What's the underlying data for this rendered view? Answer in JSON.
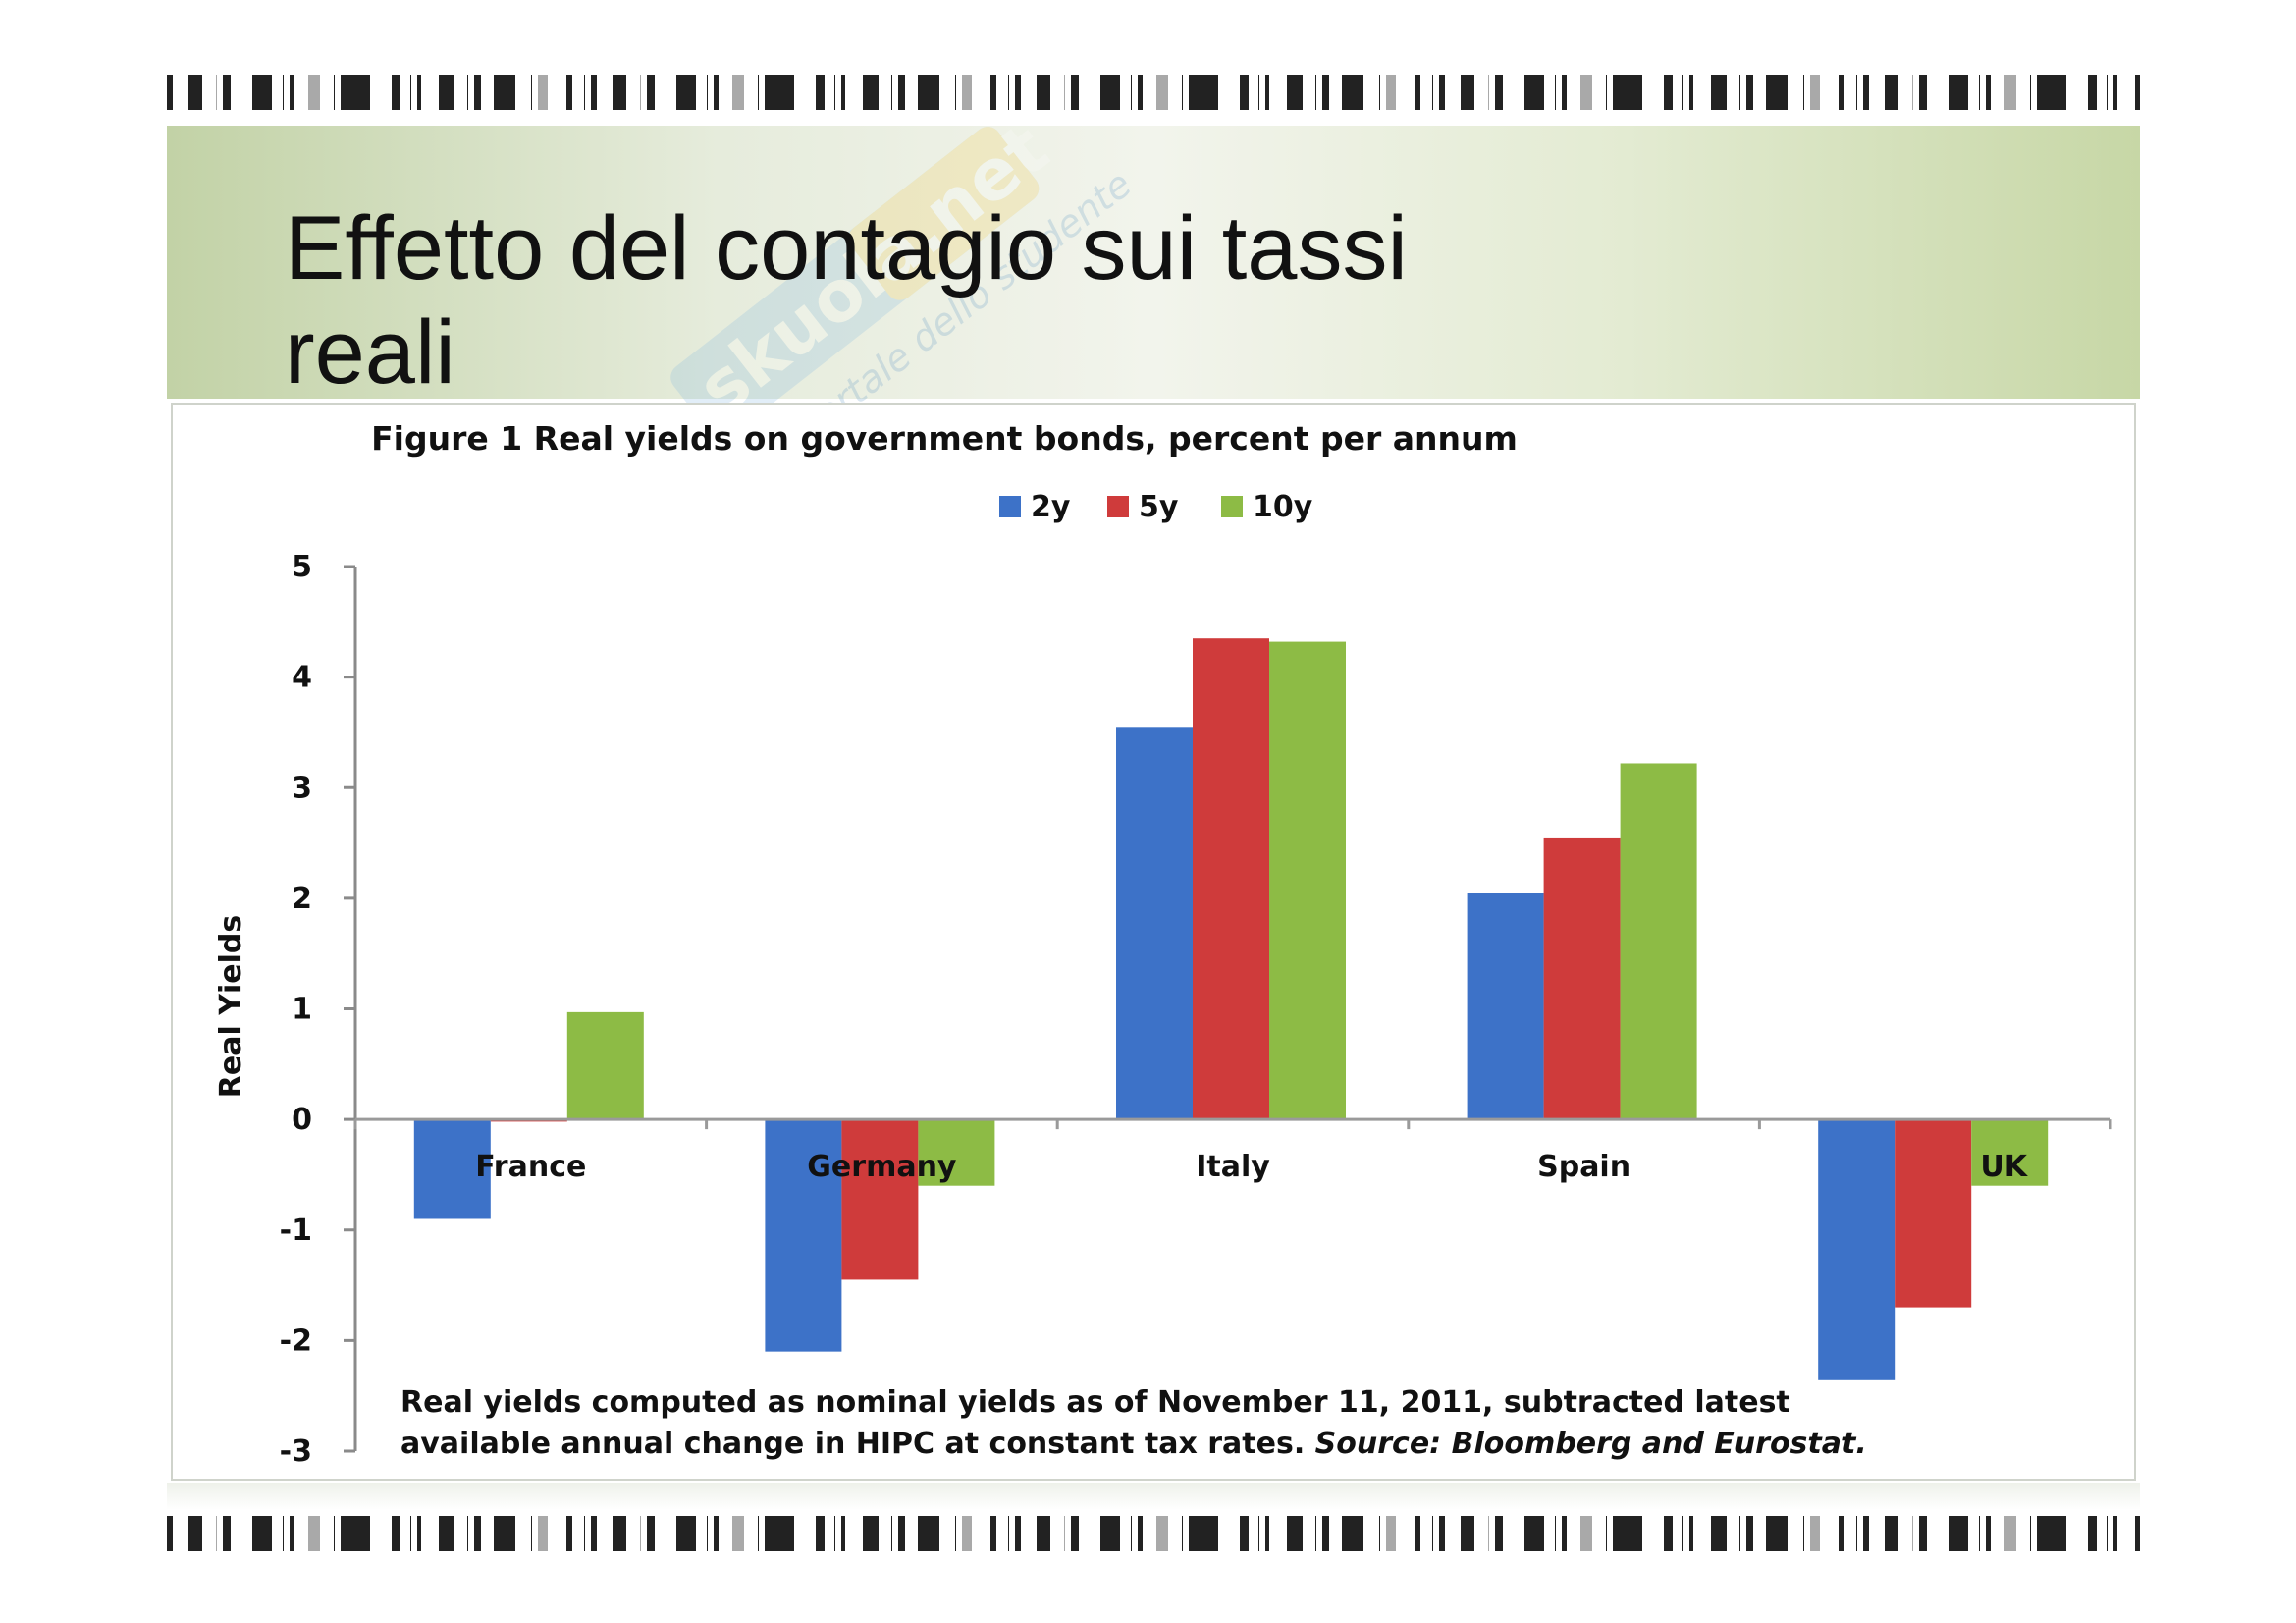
{
  "slide": {
    "title_line1": "Effetto del contagio sui tassi",
    "title_line2": "reali"
  },
  "watermark": {
    "brand": "skuola.net",
    "tagline": "il portale dello studente"
  },
  "colors": {
    "series_2y": "#3d72c8",
    "series_5y": "#cf3b3b",
    "series_10y": "#8dbb45",
    "band_green": "#c5d6a8"
  },
  "chart_data": {
    "type": "bar",
    "title": "Figure 1  Real yields on government bonds, percent per annum",
    "ylabel": "Real Yields",
    "xlabel": "",
    "ylim": [
      -3,
      5
    ],
    "yticks": [
      5,
      4,
      3,
      2,
      1,
      0,
      -1,
      -2,
      -3
    ],
    "categories": [
      "France",
      "Germany",
      "Italy",
      "Spain",
      "UK"
    ],
    "series": [
      {
        "name": "2y",
        "values": [
          -0.9,
          -2.1,
          3.55,
          2.05,
          -2.35
        ]
      },
      {
        "name": "5y",
        "values": [
          -0.02,
          -1.45,
          4.35,
          2.55,
          -1.7
        ]
      },
      {
        "name": "10y",
        "values": [
          0.97,
          -0.6,
          4.32,
          3.22,
          -0.6
        ]
      }
    ],
    "legend": {
      "position": "top-center"
    },
    "grid": false,
    "note_line1": "Real yields computed as nominal  yields as of November 11, 2011, subtracted latest",
    "note_line2_plain": "available annual  change in HIPC at constant  tax rates. ",
    "note_line2_source": "Source: Bloomberg and Eurostat."
  }
}
